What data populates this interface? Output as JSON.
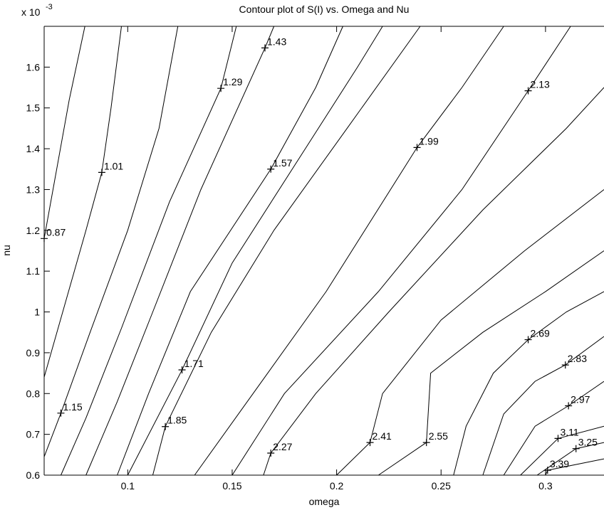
{
  "chart_data": {
    "type": "contour",
    "title": "Contour plot of S(I) vs. Omega and Nu",
    "x_label": "omega",
    "y_label": "nu",
    "y_scale_label": "x 10",
    "y_scale_exponent": "-3",
    "xlim": [
      0.06,
      0.328
    ],
    "xticks": [
      0.1,
      0.15,
      0.2,
      0.25,
      0.3
    ],
    "ylim": [
      0.6,
      1.7
    ],
    "yticks": [
      0.6,
      0.7,
      0.8,
      0.9,
      1,
      1.1,
      1.2,
      1.3,
      1.4,
      1.5,
      1.6
    ],
    "color": "#000000",
    "series": [
      {
        "level": 0.87,
        "x": [
          0.06,
          0.066,
          0.072,
          0.0795
        ],
        "y": [
          1.18,
          1.35,
          1.52,
          1.7
        ]
      },
      {
        "level": 1.01,
        "x": [
          0.06,
          0.07,
          0.08,
          0.0876,
          0.092,
          0.097
        ],
        "y": [
          0.84,
          1.02,
          1.2,
          1.342,
          1.5,
          1.7
        ]
      },
      {
        "level": 1.15,
        "x": [
          0.06,
          0.068,
          0.082,
          0.1,
          0.115,
          0.124
        ],
        "y": [
          0.645,
          0.752,
          0.95,
          1.2,
          1.45,
          1.7
        ]
      },
      {
        "level": 1.29,
        "x": [
          0.068,
          0.08,
          0.097,
          0.12,
          0.1446,
          0.152
        ],
        "y": [
          0.6,
          0.74,
          0.96,
          1.27,
          1.548,
          1.7
        ]
      },
      {
        "level": 1.43,
        "x": [
          0.08,
          0.095,
          0.112,
          0.135,
          0.1657,
          0.17
        ],
        "y": [
          0.6,
          0.78,
          1.0,
          1.3,
          1.647,
          1.7
        ]
      },
      {
        "level": 1.57,
        "x": [
          0.095,
          0.11,
          0.13,
          0.1685,
          0.19,
          0.203
        ],
        "y": [
          0.6,
          0.8,
          1.05,
          1.35,
          1.55,
          1.7
        ]
      },
      {
        "level": 1.71,
        "x": [
          0.1,
          0.126,
          0.15,
          0.185,
          0.21,
          0.222
        ],
        "y": [
          0.6,
          0.858,
          1.12,
          1.4,
          1.6,
          1.7
        ]
      },
      {
        "level": 1.85,
        "x": [
          0.112,
          0.118,
          0.14,
          0.17,
          0.205,
          0.24
        ],
        "y": [
          0.6,
          0.719,
          0.95,
          1.2,
          1.45,
          1.7
        ]
      },
      {
        "level": 1.99,
        "x": [
          0.132,
          0.16,
          0.195,
          0.2385,
          0.26,
          0.28
        ],
        "y": [
          0.6,
          0.8,
          1.05,
          1.403,
          1.55,
          1.7
        ]
      },
      {
        "level": 2.13,
        "x": [
          0.15,
          0.175,
          0.22,
          0.26,
          0.2917,
          0.312
        ],
        "y": [
          0.6,
          0.8,
          1.05,
          1.3,
          1.542,
          1.7
        ]
      },
      {
        "level": 2.27,
        "x": [
          0.165,
          0.1685,
          0.19,
          0.225,
          0.27,
          0.31,
          0.328
        ],
        "y": [
          0.6,
          0.654,
          0.8,
          1.0,
          1.25,
          1.45,
          1.55
        ]
      },
      {
        "level": 2.41,
        "x": [
          0.2,
          0.216,
          0.222,
          0.25,
          0.29,
          0.328
        ],
        "y": [
          0.6,
          0.68,
          0.8,
          0.98,
          1.15,
          1.3
        ]
      },
      {
        "level": 2.55,
        "x": [
          0.22,
          0.243,
          0.245,
          0.27,
          0.3,
          0.328
        ],
        "y": [
          0.6,
          0.68,
          0.85,
          0.95,
          1.05,
          1.15
        ]
      },
      {
        "level": 2.69,
        "x": [
          0.256,
          0.262,
          0.275,
          0.2917,
          0.31,
          0.328
        ],
        "y": [
          0.6,
          0.72,
          0.85,
          0.932,
          1.0,
          1.05
        ]
      },
      {
        "level": 2.83,
        "x": [
          0.27,
          0.28,
          0.295,
          0.3095,
          0.328
        ],
        "y": [
          0.6,
          0.75,
          0.83,
          0.87,
          0.94
        ]
      },
      {
        "level": 2.97,
        "x": [
          0.28,
          0.295,
          0.311,
          0.328
        ],
        "y": [
          0.6,
          0.72,
          0.77,
          0.83
        ]
      },
      {
        "level": 3.11,
        "x": [
          0.288,
          0.306,
          0.328
        ],
        "y": [
          0.6,
          0.69,
          0.72
        ]
      },
      {
        "level": 3.25,
        "x": [
          0.296,
          0.3146,
          0.328
        ],
        "y": [
          0.6,
          0.665,
          0.68
        ]
      },
      {
        "level": 3.39,
        "x": [
          0.3,
          0.301,
          0.328
        ],
        "y": [
          0.6,
          0.612,
          0.64
        ]
      }
    ]
  }
}
